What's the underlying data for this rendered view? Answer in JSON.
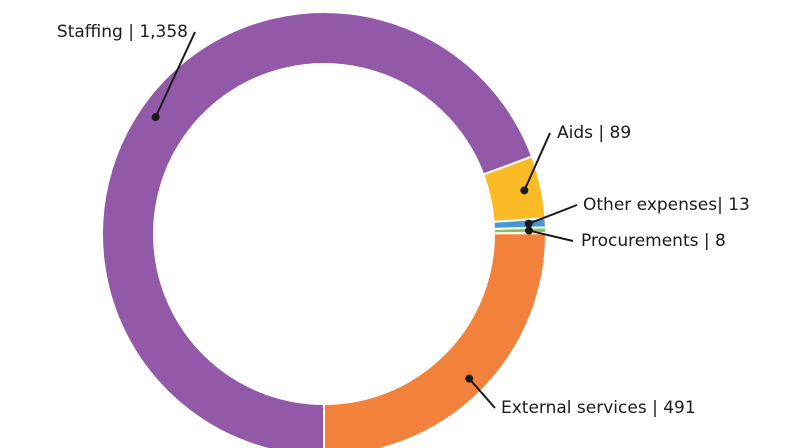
{
  "chart_data": {
    "type": "donut",
    "value_labels": [
      "Staffing | 1,358",
      "Aids | 89",
      "Other expenses| 13",
      "Procurements | 8",
      "External services | 491"
    ],
    "values": [
      1358,
      89,
      13,
      8,
      491
    ],
    "colors": [
      "#9159a8",
      "#fbbb26",
      "#4a98d3",
      "#86c45e",
      "#f2823b"
    ]
  }
}
